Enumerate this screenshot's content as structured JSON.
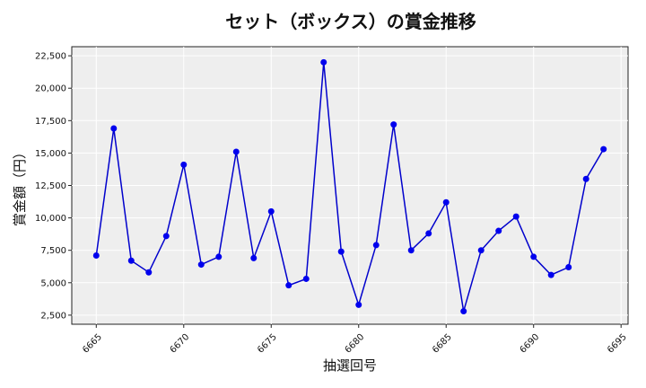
{
  "chart_data": {
    "type": "line",
    "title": "セット（ボックス）の賞金推移",
    "xlabel": "抽選回号",
    "ylabel": "賞金額（円）",
    "xlim": [
      6663.6,
      6695.4
    ],
    "ylim": [
      1800,
      23200
    ],
    "xticks": [
      6665,
      6670,
      6675,
      6680,
      6685,
      6690,
      6695
    ],
    "yticks": [
      2500,
      5000,
      7500,
      10000,
      12500,
      15000,
      17500,
      20000,
      22500
    ],
    "ytick_labels": [
      "2,500",
      "5,000",
      "7,500",
      "10,000",
      "12,500",
      "15,000",
      "17,500",
      "20,000",
      "22,500"
    ],
    "grid": true,
    "colors": {
      "line": "#0000cc",
      "marker": "#0000ee",
      "plot_bg": "#eeeeee",
      "grid": "#ffffff"
    },
    "series": [
      {
        "x": [
          6665,
          6666,
          6667,
          6668,
          6669,
          6670,
          6671,
          6672,
          6673,
          6674,
          6675,
          6676,
          6677,
          6678,
          6679,
          6680,
          6681,
          6682,
          6683,
          6684,
          6685,
          6686,
          6687,
          6688,
          6689,
          6690,
          6691,
          6692,
          6693,
          6694
        ],
        "values": [
          7100,
          16900,
          6700,
          5800,
          8600,
          14100,
          6400,
          7000,
          15100,
          6900,
          10500,
          4800,
          5300,
          22000,
          7400,
          3300,
          7900,
          17200,
          7500,
          8800,
          11200,
          2800,
          7500,
          9000,
          10100,
          7000,
          5600,
          6200,
          13000,
          15300
        ]
      }
    ]
  }
}
